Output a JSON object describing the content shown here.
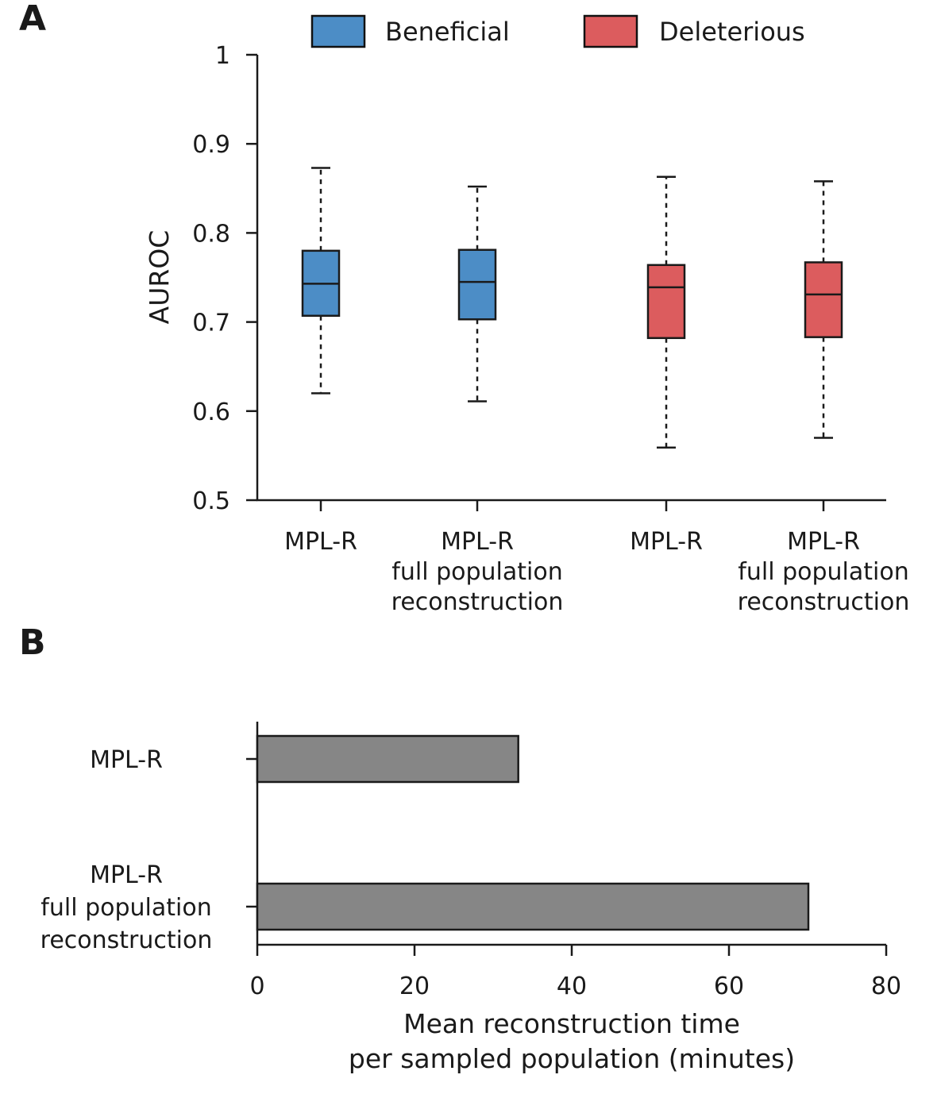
{
  "panels": {
    "a_label": "A",
    "b_label": "B"
  },
  "chart_data": [
    {
      "type": "box",
      "panel": "A",
      "ylabel": "AUROC",
      "ylim": [
        0.5,
        1.0
      ],
      "yticks": [
        {
          "value": 0.5,
          "label": "0.5"
        },
        {
          "value": 0.6,
          "label": "0.6"
        },
        {
          "value": 0.7,
          "label": "0.7"
        },
        {
          "value": 0.8,
          "label": "0.8"
        },
        {
          "value": 0.9,
          "label": "0.9"
        },
        {
          "value": 1.0,
          "label": "1"
        }
      ],
      "grid": false,
      "legend_position": "top-center",
      "legend": [
        {
          "name": "Beneficial",
          "color": "#4c8dc6"
        },
        {
          "name": "Deleterious",
          "color": "#dc5c5e"
        }
      ],
      "boxes": [
        {
          "group": "Beneficial",
          "label_lines": [
            "MPL-R"
          ],
          "whisker_low": 0.62,
          "q1": 0.707,
          "median": 0.743,
          "q3": 0.78,
          "whisker_high": 0.873,
          "color": "#4c8dc6"
        },
        {
          "group": "Beneficial",
          "label_lines": [
            "MPL-R",
            "full population",
            "reconstruction"
          ],
          "whisker_low": 0.611,
          "q1": 0.703,
          "median": 0.745,
          "q3": 0.781,
          "whisker_high": 0.852,
          "color": "#4c8dc6"
        },
        {
          "group": "Deleterious",
          "label_lines": [
            "MPL-R"
          ],
          "whisker_low": 0.559,
          "q1": 0.682,
          "median": 0.739,
          "q3": 0.764,
          "whisker_high": 0.863,
          "color": "#dc5c5e"
        },
        {
          "group": "Deleterious",
          "label_lines": [
            "MPL-R",
            "full population",
            "reconstruction"
          ],
          "whisker_low": 0.57,
          "q1": 0.683,
          "median": 0.731,
          "q3": 0.767,
          "whisker_high": 0.858,
          "color": "#dc5c5e"
        }
      ]
    },
    {
      "type": "bar",
      "orientation": "horizontal",
      "panel": "B",
      "xlabel_lines": [
        "Mean reconstruction time",
        "per sampled population (minutes)"
      ],
      "xlim": [
        0,
        80
      ],
      "xticks": [
        {
          "value": 0,
          "label": "0"
        },
        {
          "value": 20,
          "label": "20"
        },
        {
          "value": 40,
          "label": "40"
        },
        {
          "value": 60,
          "label": "60"
        },
        {
          "value": 80,
          "label": "80"
        }
      ],
      "grid": false,
      "bar_color": "#868686",
      "categories": [
        {
          "label_lines": [
            "MPL-R"
          ],
          "value": 33.2
        },
        {
          "label_lines": [
            "MPL-R",
            "full population",
            "reconstruction"
          ],
          "value": 70.1
        }
      ]
    }
  ]
}
